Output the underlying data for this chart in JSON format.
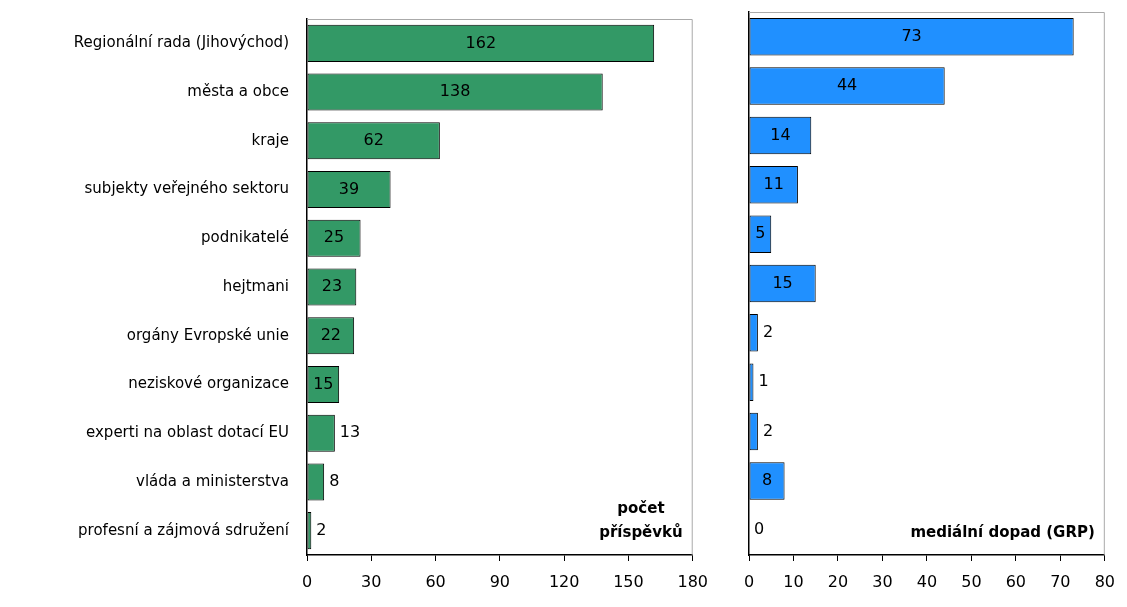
{
  "chart_data": [
    {
      "type": "bar",
      "orientation": "horizontal",
      "categories": [
        "Regionální rada (Jihovýchod)",
        "města a obce",
        "kraje",
        "subjekty veřejného sektoru",
        "podnikatelé",
        "hejtmani",
        "orgány Evropské unie",
        "neziskové organizace",
        "experti na oblast dotací EU",
        "vláda a ministerstva",
        "profesní a zájmová sdružení"
      ],
      "values": [
        162,
        138,
        62,
        39,
        25,
        23,
        22,
        15,
        13,
        8,
        2
      ],
      "color": "#339966",
      "xlim": [
        0,
        180
      ],
      "xticks": [
        0,
        30,
        60,
        90,
        120,
        150,
        180
      ],
      "data_labels": true,
      "annotations": [
        "počet příspěvků"
      ]
    },
    {
      "type": "bar",
      "orientation": "horizontal",
      "categories": [
        null,
        null,
        null,
        null,
        null,
        null,
        null,
        null,
        null,
        null,
        null
      ],
      "values": [
        73,
        44,
        14,
        11,
        5,
        15,
        2,
        1,
        2,
        8,
        0
      ],
      "color": "#2090ff",
      "xlim": [
        0,
        80
      ],
      "xticks": [
        0,
        10,
        20,
        30,
        40,
        50,
        60,
        70,
        80
      ],
      "data_labels": true,
      "tick_labels": "x",
      "annotations": [
        "mediální dopad (GRP)"
      ]
    }
  ]
}
